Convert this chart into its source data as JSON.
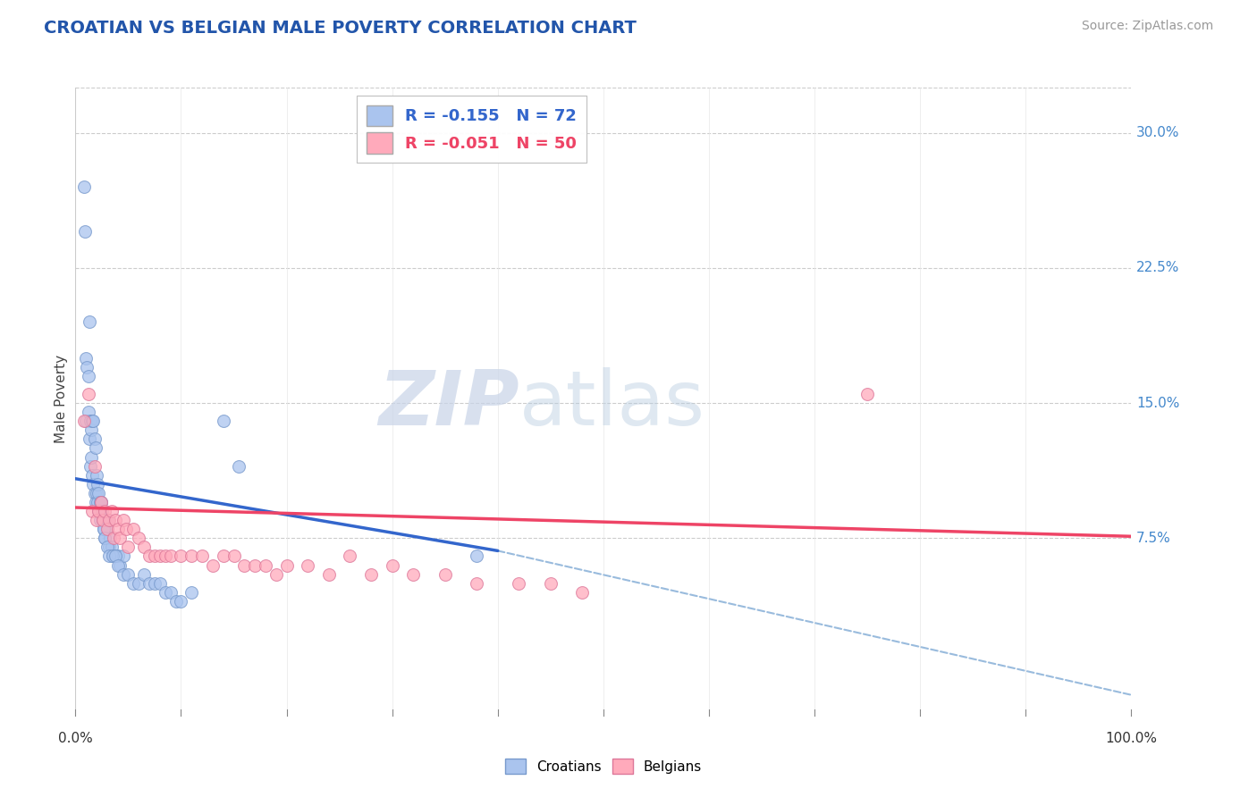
{
  "title": "CROATIAN VS BELGIAN MALE POVERTY CORRELATION CHART",
  "source": "Source: ZipAtlas.com",
  "xlabel_croatians": "Croatians",
  "xlabel_belgians": "Belgians",
  "ylabel": "Male Poverty",
  "title_color": "#2255aa",
  "source_color": "#999999",
  "background_color": "#ffffff",
  "plot_bg_color": "#ffffff",
  "grid_color": "#cccccc",
  "xlim": [
    0.0,
    1.0
  ],
  "ylim": [
    -0.02,
    0.325
  ],
  "yticks": [
    0.075,
    0.15,
    0.225,
    0.3
  ],
  "ytick_labels": [
    "7.5%",
    "15.0%",
    "22.5%",
    "30.0%"
  ],
  "croatian_color": "#aac4ee",
  "belgian_color": "#ffaabb",
  "croatian_edge": "#7799cc",
  "belgian_edge": "#dd7799",
  "trend_croatian_color": "#3366cc",
  "trend_belgian_color": "#ee4466",
  "trend_dash_color": "#99bbdd",
  "legend_line1": "R = -0.155   N = 72",
  "legend_line2": "R = -0.051   N = 50",
  "watermark_zip": "ZIP",
  "watermark_atlas": "atlas",
  "marker_size": 100,
  "croatian_x": [
    0.01,
    0.012,
    0.013,
    0.014,
    0.015,
    0.016,
    0.017,
    0.018,
    0.019,
    0.02,
    0.021,
    0.022,
    0.023,
    0.024,
    0.025,
    0.026,
    0.027,
    0.028,
    0.029,
    0.03,
    0.031,
    0.032,
    0.033,
    0.034,
    0.035,
    0.036,
    0.038,
    0.04,
    0.042,
    0.045,
    0.008,
    0.009,
    0.01,
    0.011,
    0.012,
    0.013,
    0.014,
    0.015,
    0.016,
    0.017,
    0.018,
    0.019,
    0.02,
    0.021,
    0.022,
    0.023,
    0.024,
    0.025,
    0.026,
    0.027,
    0.028,
    0.03,
    0.032,
    0.035,
    0.038,
    0.04,
    0.045,
    0.05,
    0.055,
    0.06,
    0.065,
    0.07,
    0.075,
    0.08,
    0.085,
    0.09,
    0.095,
    0.1,
    0.11,
    0.14,
    0.155,
    0.38
  ],
  "croatian_y": [
    0.14,
    0.145,
    0.13,
    0.115,
    0.12,
    0.11,
    0.105,
    0.1,
    0.095,
    0.1,
    0.095,
    0.09,
    0.085,
    0.095,
    0.09,
    0.085,
    0.08,
    0.075,
    0.085,
    0.08,
    0.085,
    0.07,
    0.075,
    0.07,
    0.065,
    0.065,
    0.065,
    0.065,
    0.06,
    0.065,
    0.27,
    0.245,
    0.175,
    0.17,
    0.165,
    0.195,
    0.14,
    0.135,
    0.14,
    0.14,
    0.13,
    0.125,
    0.11,
    0.105,
    0.1,
    0.095,
    0.095,
    0.09,
    0.085,
    0.08,
    0.075,
    0.07,
    0.065,
    0.065,
    0.065,
    0.06,
    0.055,
    0.055,
    0.05,
    0.05,
    0.055,
    0.05,
    0.05,
    0.05,
    0.045,
    0.045,
    0.04,
    0.04,
    0.045,
    0.14,
    0.115,
    0.065
  ],
  "belgian_x": [
    0.008,
    0.012,
    0.016,
    0.018,
    0.02,
    0.022,
    0.024,
    0.026,
    0.028,
    0.03,
    0.032,
    0.034,
    0.036,
    0.038,
    0.04,
    0.042,
    0.045,
    0.048,
    0.05,
    0.055,
    0.06,
    0.065,
    0.07,
    0.075,
    0.08,
    0.085,
    0.09,
    0.1,
    0.11,
    0.12,
    0.13,
    0.14,
    0.15,
    0.16,
    0.17,
    0.18,
    0.19,
    0.2,
    0.22,
    0.24,
    0.26,
    0.28,
    0.3,
    0.32,
    0.35,
    0.38,
    0.42,
    0.45,
    0.75,
    0.48
  ],
  "belgian_y": [
    0.14,
    0.155,
    0.09,
    0.115,
    0.085,
    0.09,
    0.095,
    0.085,
    0.09,
    0.08,
    0.085,
    0.09,
    0.075,
    0.085,
    0.08,
    0.075,
    0.085,
    0.08,
    0.07,
    0.08,
    0.075,
    0.07,
    0.065,
    0.065,
    0.065,
    0.065,
    0.065,
    0.065,
    0.065,
    0.065,
    0.06,
    0.065,
    0.065,
    0.06,
    0.06,
    0.06,
    0.055,
    0.06,
    0.06,
    0.055,
    0.065,
    0.055,
    0.06,
    0.055,
    0.055,
    0.05,
    0.05,
    0.05,
    0.155,
    0.045
  ],
  "trend_croatian_x0": 0.0,
  "trend_croatian_x1": 0.4,
  "trend_croatian_y0": 0.108,
  "trend_croatian_y1": 0.068,
  "trend_belgian_x0": 0.0,
  "trend_belgian_x1": 1.0,
  "trend_belgian_y0": 0.092,
  "trend_belgian_y1": 0.076,
  "trend_dash_x0": 0.4,
  "trend_dash_x1": 1.0,
  "trend_dash_y0": 0.068,
  "trend_dash_y1": -0.012
}
